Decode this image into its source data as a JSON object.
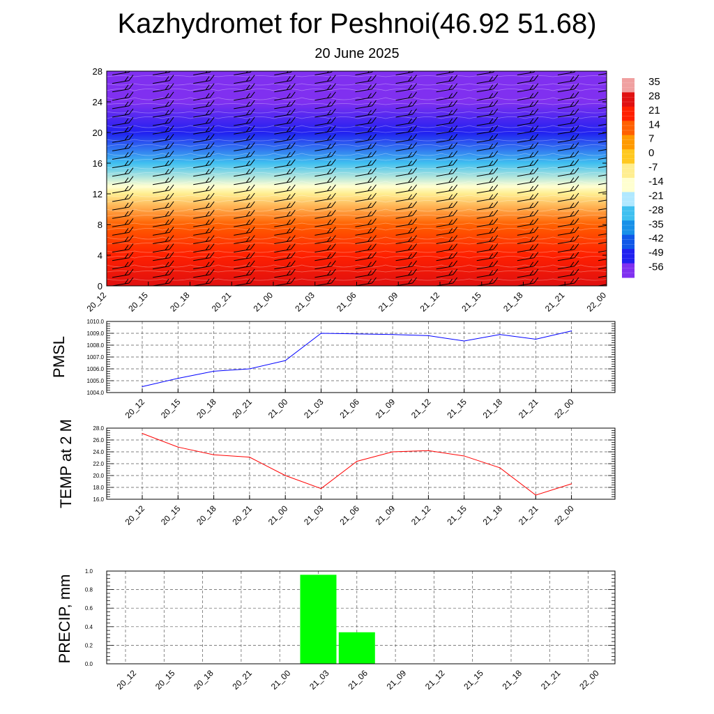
{
  "header": {
    "title": "Kazhydromet for Peshnoi(46.92 51.68)",
    "subtitle": "20 June 2025"
  },
  "time_labels": [
    "20_12",
    "20_15",
    "20_18",
    "20_21",
    "21_00",
    "21_03",
    "21_06",
    "21_09",
    "21_12",
    "21_15",
    "21_18",
    "21_21",
    "22_00"
  ],
  "chart_data": [
    {
      "type": "heatmap",
      "title": "",
      "xlabel": "",
      "ylabel": "",
      "x": [
        "20_12",
        "20_15",
        "20_18",
        "20_21",
        "21_00",
        "21_03",
        "21_06",
        "21_09",
        "21_12",
        "21_15",
        "21_18",
        "21_21",
        "22_00"
      ],
      "y_ticks": [
        0,
        4,
        8,
        12,
        16,
        20,
        24,
        28
      ],
      "ylim": [
        0,
        28
      ],
      "z_by_height": [
        {
          "height": 0,
          "value": 28
        },
        {
          "height": 4,
          "value": 24
        },
        {
          "height": 8,
          "value": 14
        },
        {
          "height": 12,
          "value": -4
        },
        {
          "height": 13,
          "value": -12
        },
        {
          "height": 16,
          "value": -28
        },
        {
          "height": 20,
          "value": -49
        },
        {
          "height": 24,
          "value": -56
        },
        {
          "height": 28,
          "value": -58
        }
      ],
      "colorbar": {
        "labels": [
          "35",
          "28",
          "21",
          "14",
          "7",
          "0",
          "-7",
          "-14",
          "-21",
          "-28",
          "-35",
          "-42",
          "-49",
          "-56"
        ],
        "colors": [
          "#f0a0a0",
          "#e01010",
          "#ff2000",
          "#ff6000",
          "#ff9a00",
          "#ffc820",
          "#ffee90",
          "#ffffd0",
          "#b0e8ff",
          "#40c0f0",
          "#1890e8",
          "#1058e8",
          "#2020f0",
          "#8030f0"
        ]
      },
      "wind_barbs": true
    },
    {
      "type": "line",
      "title": "",
      "ylabel": "PMSL",
      "x": [
        "20_12",
        "20_15",
        "20_18",
        "20_21",
        "21_00",
        "21_03",
        "21_06",
        "21_09",
        "21_12",
        "21_15",
        "21_18",
        "21_21",
        "22_00"
      ],
      "series": [
        {
          "values": [
            1004.5,
            1005.2,
            1005.8,
            1006.0,
            1006.7,
            1009.0,
            1008.95,
            1008.9,
            1008.8,
            1008.35,
            1008.9,
            1008.5,
            1009.2
          ],
          "color": "#0000ff"
        }
      ],
      "y_ticks": [
        "1004.0",
        "1005.0",
        "1006.0",
        "1007.0",
        "1008.0",
        "1009.0",
        "1010.0"
      ],
      "ylim": [
        1004,
        1010
      ],
      "grid": true
    },
    {
      "type": "line",
      "title": "",
      "ylabel": "TEMP at 2 M",
      "x": [
        "20_12",
        "20_15",
        "20_18",
        "20_21",
        "21_00",
        "21_03",
        "21_06",
        "21_09",
        "21_12",
        "21_15",
        "21_18",
        "21_21",
        "22_00"
      ],
      "series": [
        {
          "values": [
            27.1,
            24.8,
            23.5,
            23.1,
            20.0,
            17.8,
            22.4,
            24.0,
            24.2,
            23.3,
            21.3,
            16.7,
            18.6
          ],
          "color": "#ff0000"
        }
      ],
      "y_ticks": [
        "16.0",
        "18.0",
        "20.0",
        "22.0",
        "24.0",
        "26.0",
        "28.0"
      ],
      "ylim": [
        16,
        28
      ],
      "grid": true
    },
    {
      "type": "bar",
      "title": "",
      "ylabel": "PRECIP, mm",
      "categories": [
        "20_12",
        "20_15",
        "20_18",
        "20_21",
        "21_00",
        "21_03",
        "21_06",
        "21_09",
        "21_12",
        "21_15",
        "21_18",
        "21_21",
        "22_00"
      ],
      "values": [
        0,
        0,
        0,
        0,
        0,
        0.96,
        0.34,
        0,
        0,
        0,
        0,
        0,
        0
      ],
      "y_ticks": [
        "0.0",
        "0.2",
        "0.4",
        "0.6",
        "0.8",
        "1.0"
      ],
      "ylim": [
        0,
        1
      ],
      "color": "#00ff00",
      "grid": true
    }
  ]
}
